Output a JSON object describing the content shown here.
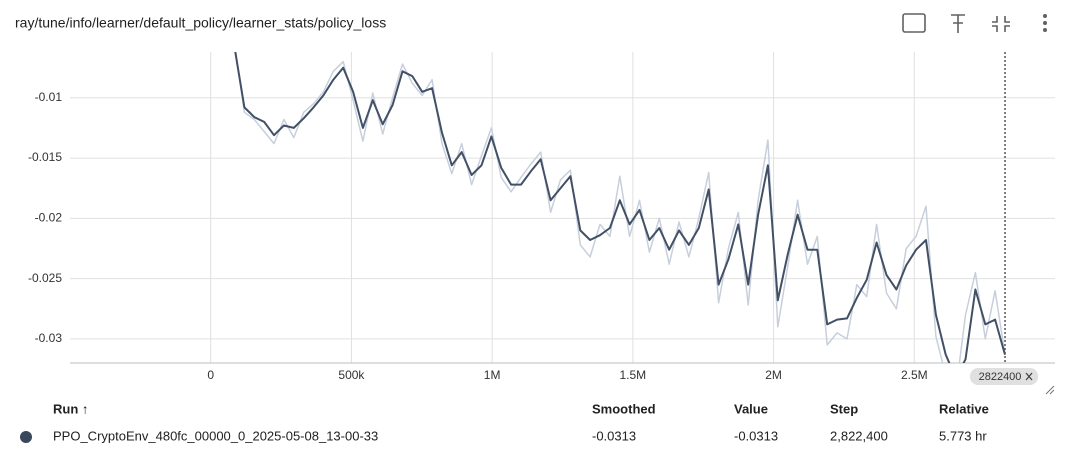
{
  "header": {
    "title": "ray/tune/info/learner/default_policy/learner_stats/policy_loss"
  },
  "chart_data": {
    "type": "line",
    "x": [
      84600,
      119700,
      154800,
      189900,
      225000,
      260100,
      295200,
      330300,
      365400,
      400500,
      435600,
      470700,
      505800,
      540900,
      576000,
      611100,
      646200,
      681300,
      716400,
      751500,
      786600,
      821700,
      856800,
      891900,
      927000,
      962100,
      997200,
      1032300,
      1067400,
      1102500,
      1137600,
      1172700,
      1207800,
      1242900,
      1278000,
      1313100,
      1348200,
      1383300,
      1418400,
      1453500,
      1488600,
      1523700,
      1558800,
      1593900,
      1629000,
      1664100,
      1699200,
      1734300,
      1769400,
      1804500,
      1839600,
      1874700,
      1909800,
      1944900,
      1980000,
      2015100,
      2050200,
      2085300,
      2120400,
      2155500,
      2190600,
      2225700,
      2260800,
      2295900,
      2331000,
      2366100,
      2401200,
      2436300,
      2471400,
      2506500,
      2541600,
      2576700,
      2611800,
      2646900,
      2682000,
      2717100,
      2752200,
      2787300,
      2822400
    ],
    "series": [
      {
        "color": "#c7cfdc",
        "values": [
          -0.0055,
          -0.0112,
          -0.0118,
          -0.0128,
          -0.0138,
          -0.0118,
          -0.0133,
          -0.0112,
          -0.0105,
          -0.0095,
          -0.0078,
          -0.007,
          -0.0102,
          -0.0136,
          -0.0096,
          -0.013,
          -0.01,
          -0.0072,
          -0.0088,
          -0.0098,
          -0.0085,
          -0.0138,
          -0.0163,
          -0.0138,
          -0.0172,
          -0.0148,
          -0.0125,
          -0.0166,
          -0.0178,
          -0.0166,
          -0.0155,
          -0.0145,
          -0.0195,
          -0.0168,
          -0.016,
          -0.0222,
          -0.0232,
          -0.0205,
          -0.0215,
          -0.0165,
          -0.0215,
          -0.0185,
          -0.0228,
          -0.02,
          -0.0238,
          -0.0203,
          -0.0232,
          -0.02,
          -0.0162,
          -0.027,
          -0.0225,
          -0.0195,
          -0.0272,
          -0.0185,
          -0.0135,
          -0.029,
          -0.024,
          -0.0185,
          -0.0238,
          -0.0215,
          -0.0305,
          -0.0295,
          -0.03,
          -0.0255,
          -0.0265,
          -0.0205,
          -0.0262,
          -0.0275,
          -0.0225,
          -0.0215,
          -0.019,
          -0.0298,
          -0.033,
          -0.0345,
          -0.028,
          -0.0245,
          -0.03,
          -0.026,
          -0.0313
        ]
      },
      {
        "color": "#425066",
        "values": [
          -0.0058,
          -0.0108,
          -0.0116,
          -0.012,
          -0.0131,
          -0.0123,
          -0.0125,
          -0.0117,
          -0.0108,
          -0.0098,
          -0.0085,
          -0.0075,
          -0.0095,
          -0.0125,
          -0.0102,
          -0.0122,
          -0.0106,
          -0.0078,
          -0.0082,
          -0.0095,
          -0.0092,
          -0.0129,
          -0.0156,
          -0.0145,
          -0.0164,
          -0.0156,
          -0.0132,
          -0.0158,
          -0.0172,
          -0.0172,
          -0.0161,
          -0.0151,
          -0.0185,
          -0.0175,
          -0.0165,
          -0.021,
          -0.0218,
          -0.0214,
          -0.0208,
          -0.0185,
          -0.0205,
          -0.0193,
          -0.0218,
          -0.0208,
          -0.0226,
          -0.021,
          -0.0222,
          -0.0208,
          -0.0176,
          -0.0255,
          -0.0234,
          -0.0205,
          -0.0255,
          -0.0197,
          -0.0156,
          -0.0268,
          -0.023,
          -0.0197,
          -0.0226,
          -0.0226,
          -0.0288,
          -0.0284,
          -0.0283,
          -0.0266,
          -0.0251,
          -0.022,
          -0.0247,
          -0.0259,
          -0.0239,
          -0.0226,
          -0.0218,
          -0.028,
          -0.0313,
          -0.0332,
          -0.0317,
          -0.0259,
          -0.0288,
          -0.0284,
          -0.0313
        ]
      }
    ],
    "xlim": [
      -500000,
      3000000
    ],
    "xticks": [
      0,
      {
        "value": 500000,
        "label": "500k"
      },
      {
        "value": 1000000,
        "label": "1M"
      },
      {
        "value": 1500000,
        "label": "1.5M"
      },
      {
        "value": 2000000,
        "label": "2M"
      },
      {
        "value": 2500000,
        "label": "2.5M"
      }
    ],
    "ylim": [
      -0.032,
      -0.0062
    ],
    "yticks": [
      -0.01,
      -0.015,
      -0.02,
      -0.025,
      -0.03
    ],
    "grid": true,
    "cursor_step": 2822400
  },
  "table": {
    "columns": [
      "Run ↑",
      "Smoothed",
      "Value",
      "Step",
      "Relative"
    ],
    "rows": [
      [
        "PPO_CryptoEnv_480fc_00000_0_2025-05-08_13-00-33",
        "-0.0313",
        "-0.0313",
        "2,822,400",
        "5.773 hr"
      ]
    ]
  }
}
